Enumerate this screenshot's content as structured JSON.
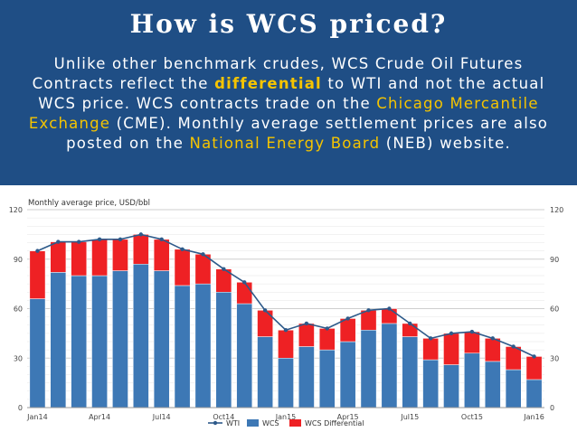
{
  "header": {
    "title": "How is WCS priced?",
    "p1": "Unlike other benchmark crudes, WCS Crude Oil Futures Contracts reflect the ",
    "hl1": "differential",
    "p2": " to WTI and not the actual WCS price. WCS contracts trade on the ",
    "hl2": "Chicago Mercantile Exchange",
    "p3": " (CME). Monthly average settlement prices are also posted on the ",
    "hl3": "National Energy Board",
    "p4": " (NEB) website."
  },
  "colors": {
    "banner": "#1f4e85",
    "highlight": "#f5c400",
    "wcs": "#3d78b5",
    "diff": "#ee2124",
    "wti": "#2e5a8a"
  },
  "chart_data": {
    "type": "bar",
    "subtitle": "Monthly average price, USD/bbl",
    "ylim": [
      0,
      120
    ],
    "yticks": [
      0,
      30,
      60,
      90,
      120
    ],
    "categories": [
      "Jan14",
      "Feb14",
      "Mar14",
      "Apr14",
      "May14",
      "Jun14",
      "Jul14",
      "Aug14",
      "Sep14",
      "Oct14",
      "Nov14",
      "Dec14",
      "Jan15",
      "Feb15",
      "Mar15",
      "Apr15",
      "May15",
      "Jun15",
      "Jul15",
      "Aug15",
      "Sep15",
      "Oct15",
      "Nov15",
      "Dec15",
      "Jan16"
    ],
    "xtick_labels": [
      "Jan14",
      "Apr14",
      "Jul14",
      "Oct14",
      "Jan15",
      "Apr15",
      "Jul15",
      "Oct15",
      "Jan16"
    ],
    "xtick_indices": [
      0,
      3,
      6,
      9,
      12,
      15,
      18,
      21,
      24
    ],
    "series": [
      {
        "name": "WTI",
        "type": "line",
        "values": [
          95,
          100.5,
          100.5,
          102,
          102,
          105,
          102,
          96,
          93,
          84,
          76,
          59,
          47,
          51,
          48,
          54,
          59,
          60,
          51,
          42,
          45,
          46,
          42,
          37,
          31
        ]
      },
      {
        "name": "WCS",
        "type": "bar",
        "values": [
          66,
          82,
          80,
          80,
          83,
          87,
          83,
          74,
          75,
          70,
          63,
          43,
          30,
          37,
          35,
          40,
          47,
          51,
          43,
          29,
          26,
          33,
          28,
          23,
          17
        ]
      },
      {
        "name": "WCS Differential",
        "type": "bar",
        "values": [
          29,
          18.5,
          20.5,
          22,
          19,
          18,
          19,
          22,
          18,
          14,
          13,
          16,
          17,
          14,
          13,
          14,
          12,
          9,
          8,
          13,
          19,
          13,
          14,
          14,
          14
        ]
      }
    ],
    "legend": "bottom-center",
    "grid": true
  }
}
